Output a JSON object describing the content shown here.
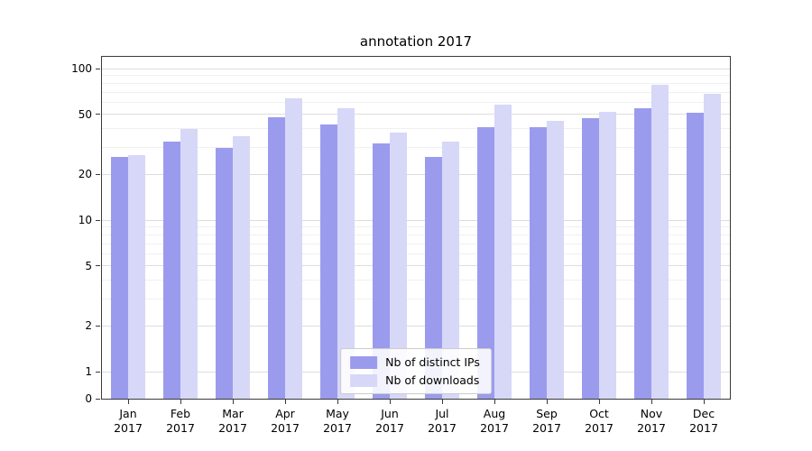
{
  "chart_data": {
    "type": "bar",
    "title": "annotation 2017",
    "categories": [
      "Jan",
      "Feb",
      "Mar",
      "Apr",
      "May",
      "Jun",
      "Jul",
      "Aug",
      "Sep",
      "Oct",
      "Nov",
      "Dec"
    ],
    "year": "2017",
    "series": [
      {
        "name": "Nb of distinct IPs",
        "color": "#9b9bee",
        "values": [
          26,
          33,
          30,
          48,
          43,
          32,
          26,
          41,
          41,
          47,
          55,
          51
        ]
      },
      {
        "name": "Nb of downloads",
        "color": "#d7d7f8",
        "values": [
          27,
          40,
          36,
          64,
          55,
          38,
          33,
          58,
          45,
          52,
          78,
          68
        ]
      }
    ],
    "yticks": [
      0,
      1,
      2,
      5,
      10,
      20,
      50,
      100
    ],
    "scale": "symlog",
    "ylim": [
      0,
      130
    ],
    "grid": "horizontal",
    "legend_position": "lower center"
  }
}
